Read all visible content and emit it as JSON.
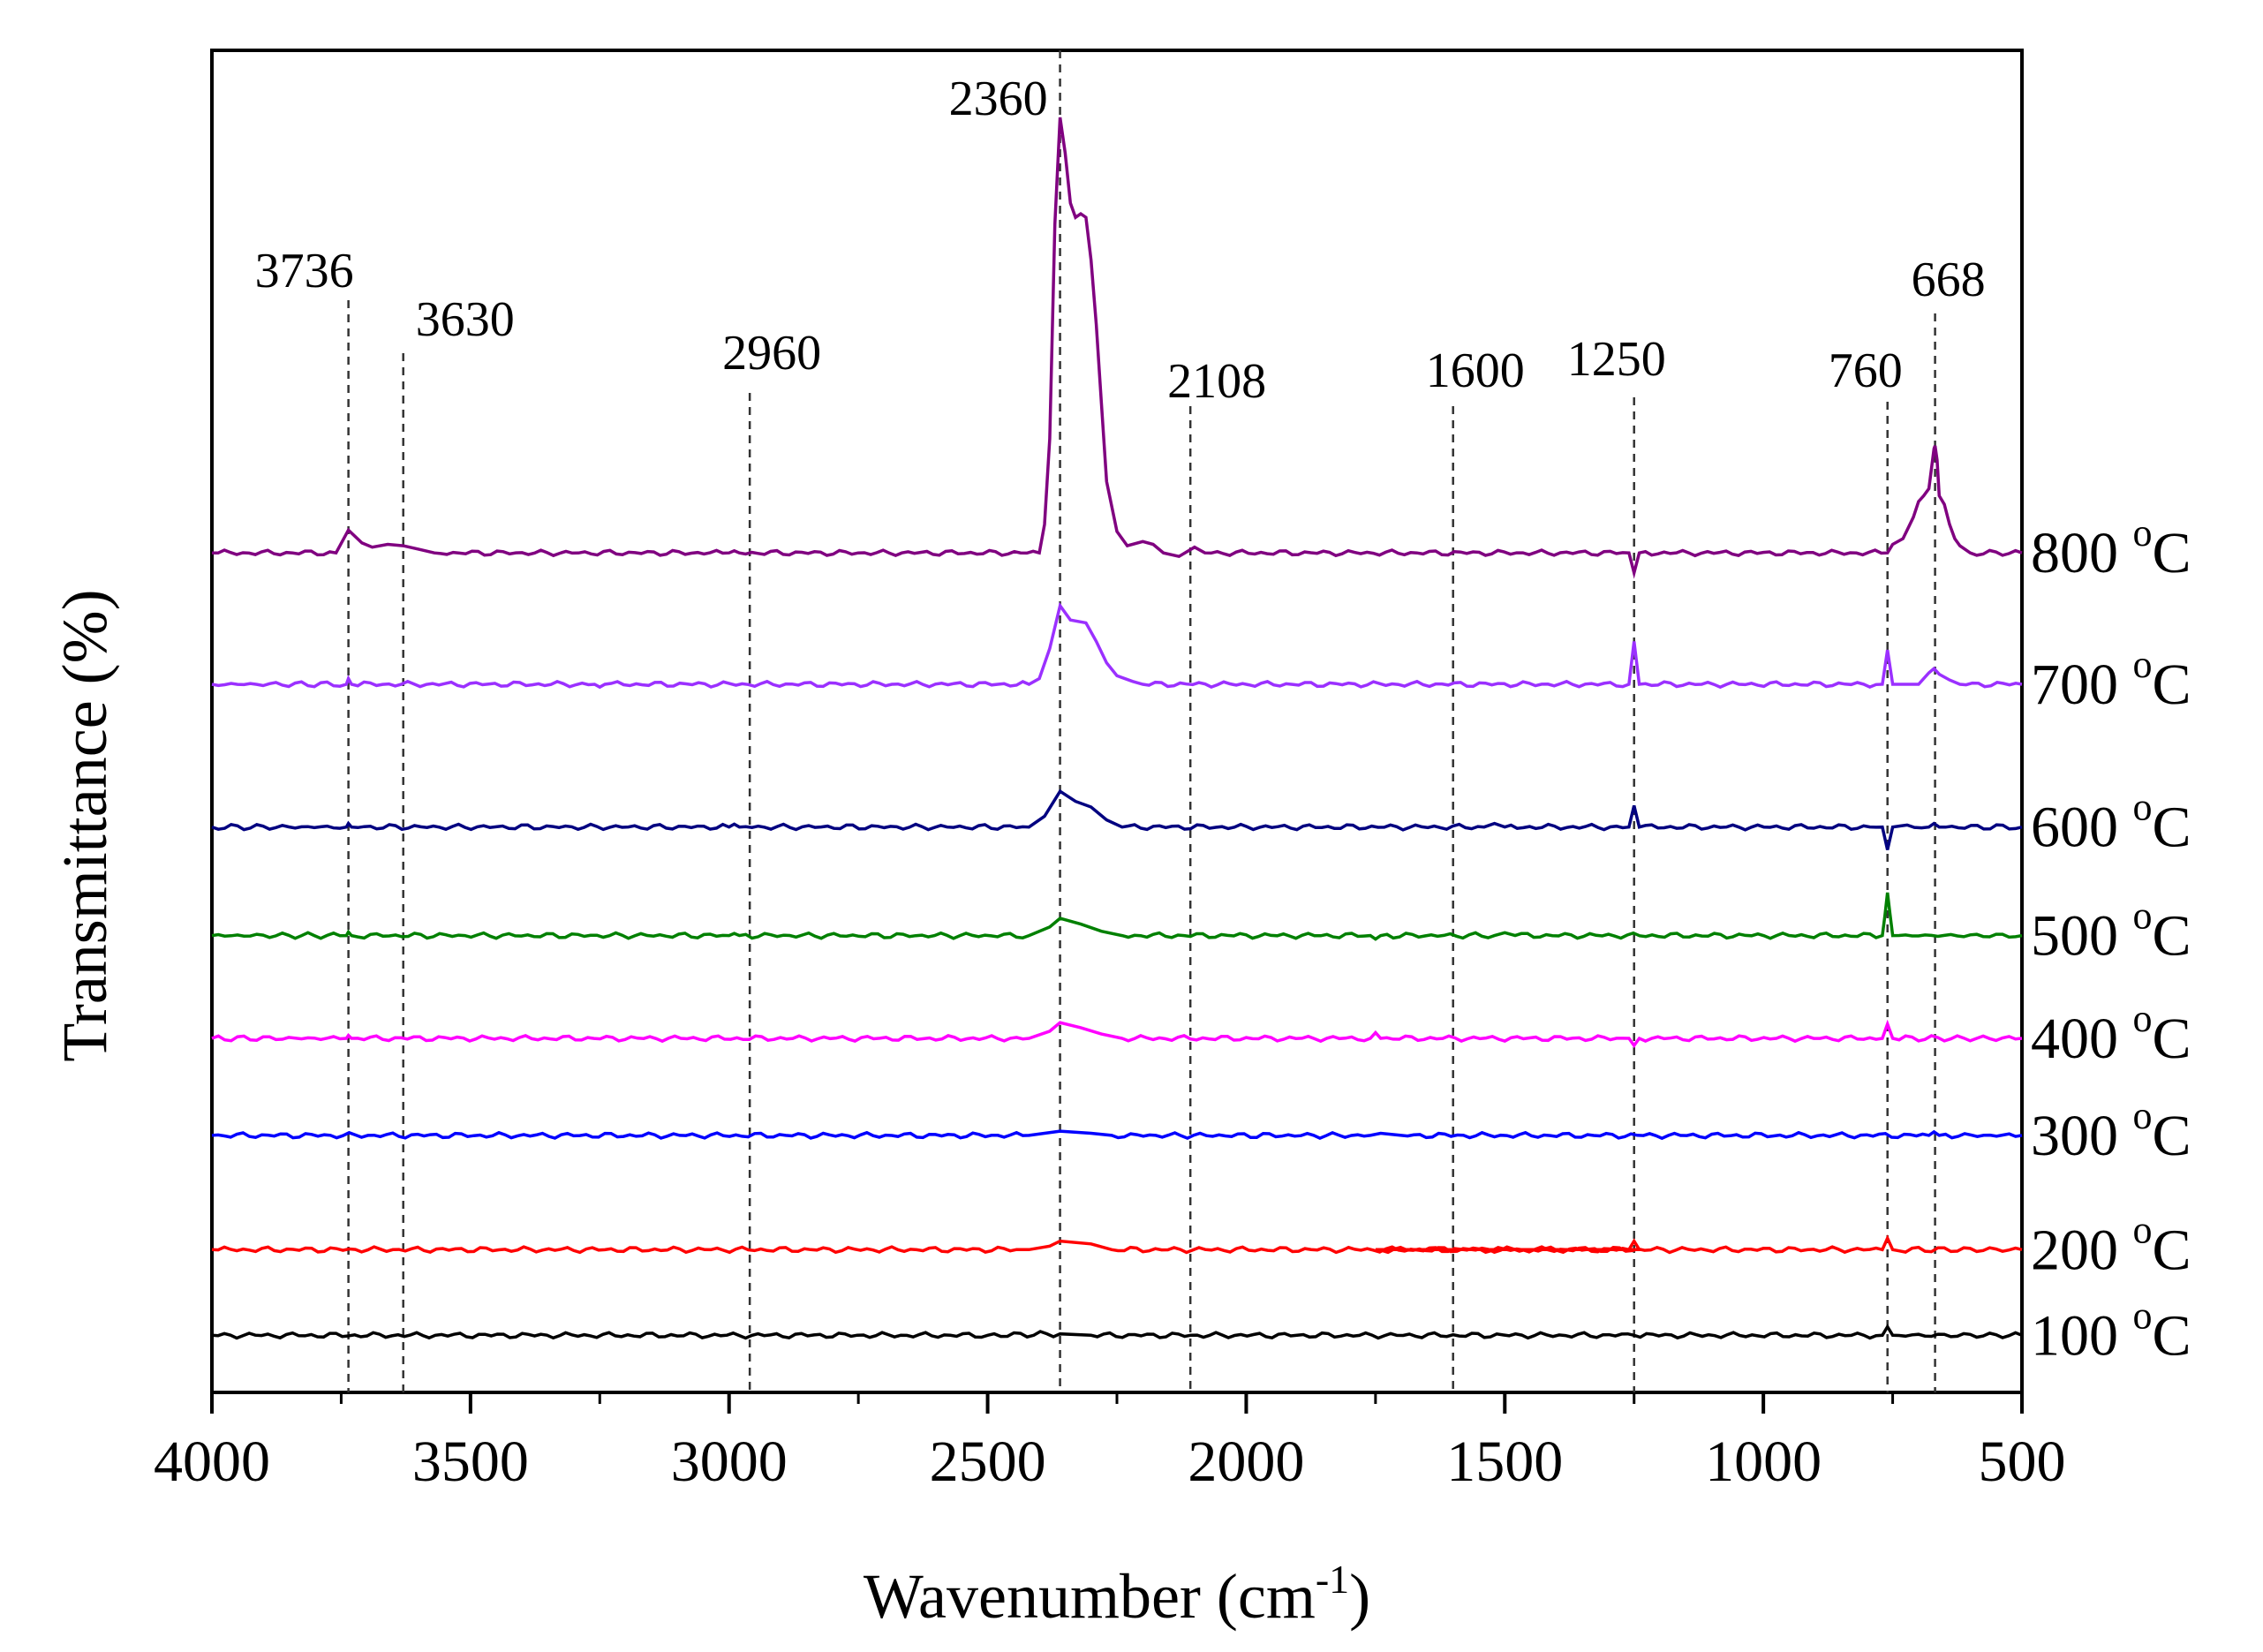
{
  "chart_data": {
    "type": "line",
    "title": "",
    "xlabel": "Wavenumber (cm-1)",
    "xlabel_main": "Wavenumber (cm",
    "xlabel_sup": "-1",
    "xlabel_close": ")",
    "ylabel": "Transmittance (%)",
    "xlim": [
      4000,
      500
    ],
    "xticks": [
      4000,
      3500,
      3000,
      2500,
      2000,
      1500,
      1000,
      500
    ],
    "ylim": [
      0,
      9.4
    ],
    "yticks_visible": false,
    "degree_sup": "o",
    "unit": "C",
    "peak_markers": [
      {
        "label": "3736",
        "x": 3736
      },
      {
        "label": "3630",
        "x": 3630
      },
      {
        "label": "2960",
        "x": 2960
      },
      {
        "label": "2360",
        "x": 2360
      },
      {
        "label": "2108",
        "x": 2108
      },
      {
        "label": "1600",
        "x": 1600
      },
      {
        "label": "1250",
        "x": 1250
      },
      {
        "label": "760",
        "x": 760
      },
      {
        "label": "668",
        "x": 668
      }
    ],
    "series": [
      {
        "name": "100",
        "color": "#000000",
        "baseline": 0.4,
        "scale": 0.5,
        "points": [
          [
            4000,
            0
          ],
          [
            2500,
            0
          ],
          [
            2360,
            0.02
          ],
          [
            2300,
            0
          ],
          [
            1250,
            0
          ],
          [
            770,
            0
          ],
          [
            760,
            0.12
          ],
          [
            750,
            0
          ],
          [
            500,
            0
          ]
        ]
      },
      {
        "name": "200",
        "color": "#ff0000",
        "baseline": 1.0,
        "scale": 0.5,
        "points": [
          [
            4000,
            0
          ],
          [
            2420,
            0
          ],
          [
            2380,
            0.05
          ],
          [
            2360,
            0.12
          ],
          [
            2300,
            0.08
          ],
          [
            2260,
            0
          ],
          [
            1260,
            0
          ],
          [
            1250,
            0.12
          ],
          [
            1240,
            0
          ],
          [
            1750,
            0
          ],
          [
            770,
            0
          ],
          [
            760,
            0.16
          ],
          [
            750,
            0
          ],
          [
            500,
            0
          ]
        ]
      },
      {
        "name": "300",
        "color": "#0000ff",
        "baseline": 1.8,
        "scale": 0.5,
        "points": [
          [
            4000,
            0
          ],
          [
            2420,
            0
          ],
          [
            2360,
            0.06
          ],
          [
            2300,
            0.03
          ],
          [
            2260,
            0
          ],
          [
            1760,
            0
          ],
          [
            1740,
            0.03
          ],
          [
            1700,
            0
          ],
          [
            680,
            0
          ],
          [
            670,
            0.05
          ],
          [
            660,
            0
          ],
          [
            500,
            0
          ]
        ]
      },
      {
        "name": "400",
        "color": "#ff00ff",
        "baseline": 2.48,
        "scale": 0.5,
        "points": [
          [
            4000,
            0
          ],
          [
            3740,
            0
          ],
          [
            3736,
            0.04
          ],
          [
            3730,
            0
          ],
          [
            2420,
            0
          ],
          [
            2380,
            0.1
          ],
          [
            2360,
            0.22
          ],
          [
            2320,
            0.15
          ],
          [
            2280,
            0.06
          ],
          [
            2240,
            0
          ],
          [
            1760,
            0
          ],
          [
            1750,
            0.08
          ],
          [
            1740,
            0
          ],
          [
            1260,
            0
          ],
          [
            1250,
            -0.1
          ],
          [
            1240,
            0
          ],
          [
            770,
            0
          ],
          [
            760,
            0.2
          ],
          [
            750,
            0
          ],
          [
            500,
            0
          ]
        ]
      },
      {
        "name": "500",
        "color": "#008000",
        "baseline": 3.2,
        "scale": 0.5,
        "points": [
          [
            4000,
            0
          ],
          [
            3740,
            0
          ],
          [
            3736,
            0.05
          ],
          [
            3730,
            0
          ],
          [
            3000,
            0
          ],
          [
            2990,
            0.03
          ],
          [
            2980,
            0
          ],
          [
            2420,
            0
          ],
          [
            2380,
            0.12
          ],
          [
            2360,
            0.24
          ],
          [
            2320,
            0.16
          ],
          [
            2280,
            0.06
          ],
          [
            2240,
            0
          ],
          [
            1760,
            0
          ],
          [
            1750,
            -0.05
          ],
          [
            1740,
            0
          ],
          [
            1520,
            0
          ],
          [
            1500,
            0.04
          ],
          [
            1480,
            0
          ],
          [
            770,
            0
          ],
          [
            765,
            0.28
          ],
          [
            760,
            0.6
          ],
          [
            755,
            0.3
          ],
          [
            750,
            0
          ],
          [
            500,
            0
          ]
        ]
      },
      {
        "name": "600",
        "color": "#000080",
        "baseline": 3.96,
        "scale": 0.5,
        "points": [
          [
            4000,
            0
          ],
          [
            3740,
            0
          ],
          [
            3736,
            0.05
          ],
          [
            3730,
            0
          ],
          [
            3000,
            0
          ],
          [
            2990,
            0.04
          ],
          [
            2980,
            0
          ],
          [
            2420,
            0
          ],
          [
            2390,
            0.15
          ],
          [
            2360,
            0.5
          ],
          [
            2330,
            0.36
          ],
          [
            2300,
            0.28
          ],
          [
            2270,
            0.1
          ],
          [
            2240,
            0
          ],
          [
            1540,
            0
          ],
          [
            1520,
            0.05
          ],
          [
            1500,
            0
          ],
          [
            1260,
            0
          ],
          [
            1250,
            0.3
          ],
          [
            1240,
            0
          ],
          [
            770,
            0
          ],
          [
            760,
            -0.32
          ],
          [
            750,
            0
          ],
          [
            680,
            0
          ],
          [
            670,
            0.05
          ],
          [
            660,
            0
          ],
          [
            500,
            0
          ]
        ]
      },
      {
        "name": "700",
        "color": "#9b30ff",
        "baseline": 4.96,
        "scale": 0.5,
        "points": [
          [
            4000,
            0
          ],
          [
            3740,
            0
          ],
          [
            3736,
            0.08
          ],
          [
            3730,
            0
          ],
          [
            3260,
            0
          ],
          [
            3250,
            -0.04
          ],
          [
            3240,
            0
          ],
          [
            2420,
            0
          ],
          [
            2400,
            0.08
          ],
          [
            2380,
            0.5
          ],
          [
            2360,
            1.1
          ],
          [
            2340,
            0.9
          ],
          [
            2310,
            0.86
          ],
          [
            2290,
            0.6
          ],
          [
            2270,
            0.3
          ],
          [
            2250,
            0.12
          ],
          [
            2220,
            0.04
          ],
          [
            2200,
            0
          ],
          [
            1260,
            0
          ],
          [
            1250,
            0.6
          ],
          [
            1240,
            0
          ],
          [
            770,
            0
          ],
          [
            760,
            0.48
          ],
          [
            750,
            0
          ],
          [
            700,
            0
          ],
          [
            680,
            0.16
          ],
          [
            670,
            0.22
          ],
          [
            660,
            0.14
          ],
          [
            640,
            0.06
          ],
          [
            620,
            0
          ],
          [
            500,
            0
          ]
        ]
      },
      {
        "name": "800",
        "color": "#800080",
        "baseline": 5.88,
        "scale": 0.5,
        "points": [
          [
            4000,
            0
          ],
          [
            3760,
            0
          ],
          [
            3736,
            0.32
          ],
          [
            3710,
            0.14
          ],
          [
            3690,
            0.08
          ],
          [
            3660,
            0.12
          ],
          [
            3630,
            0.1
          ],
          [
            3600,
            0.05
          ],
          [
            3570,
            0
          ],
          [
            3000,
            0
          ],
          [
            2990,
            0.03
          ],
          [
            2980,
            0
          ],
          [
            2400,
            0
          ],
          [
            2390,
            0.4
          ],
          [
            2380,
            1.6
          ],
          [
            2370,
            4.6
          ],
          [
            2360,
            6.1
          ],
          [
            2350,
            5.6
          ],
          [
            2340,
            4.9
          ],
          [
            2330,
            4.7
          ],
          [
            2320,
            4.75
          ],
          [
            2310,
            4.7
          ],
          [
            2300,
            4.1
          ],
          [
            2290,
            3.2
          ],
          [
            2280,
            2.1
          ],
          [
            2270,
            1.0
          ],
          [
            2250,
            0.3
          ],
          [
            2230,
            0.1
          ],
          [
            2200,
            0.16
          ],
          [
            2180,
            0.12
          ],
          [
            2160,
            0
          ],
          [
            2130,
            -0.05
          ],
          [
            2100,
            0.08
          ],
          [
            2080,
            0
          ],
          [
            1260,
            0
          ],
          [
            1250,
            -0.28
          ],
          [
            1240,
            0
          ],
          [
            760,
            0
          ],
          [
            750,
            0.12
          ],
          [
            730,
            0.2
          ],
          [
            710,
            0.5
          ],
          [
            700,
            0.72
          ],
          [
            690,
            0.8
          ],
          [
            680,
            0.9
          ],
          [
            670,
            1.46
          ],
          [
            668,
            1.5
          ],
          [
            664,
            1.3
          ],
          [
            660,
            0.8
          ],
          [
            650,
            0.68
          ],
          [
            640,
            0.4
          ],
          [
            630,
            0.2
          ],
          [
            620,
            0.1
          ],
          [
            600,
            0
          ],
          [
            500,
            0
          ]
        ]
      }
    ]
  }
}
